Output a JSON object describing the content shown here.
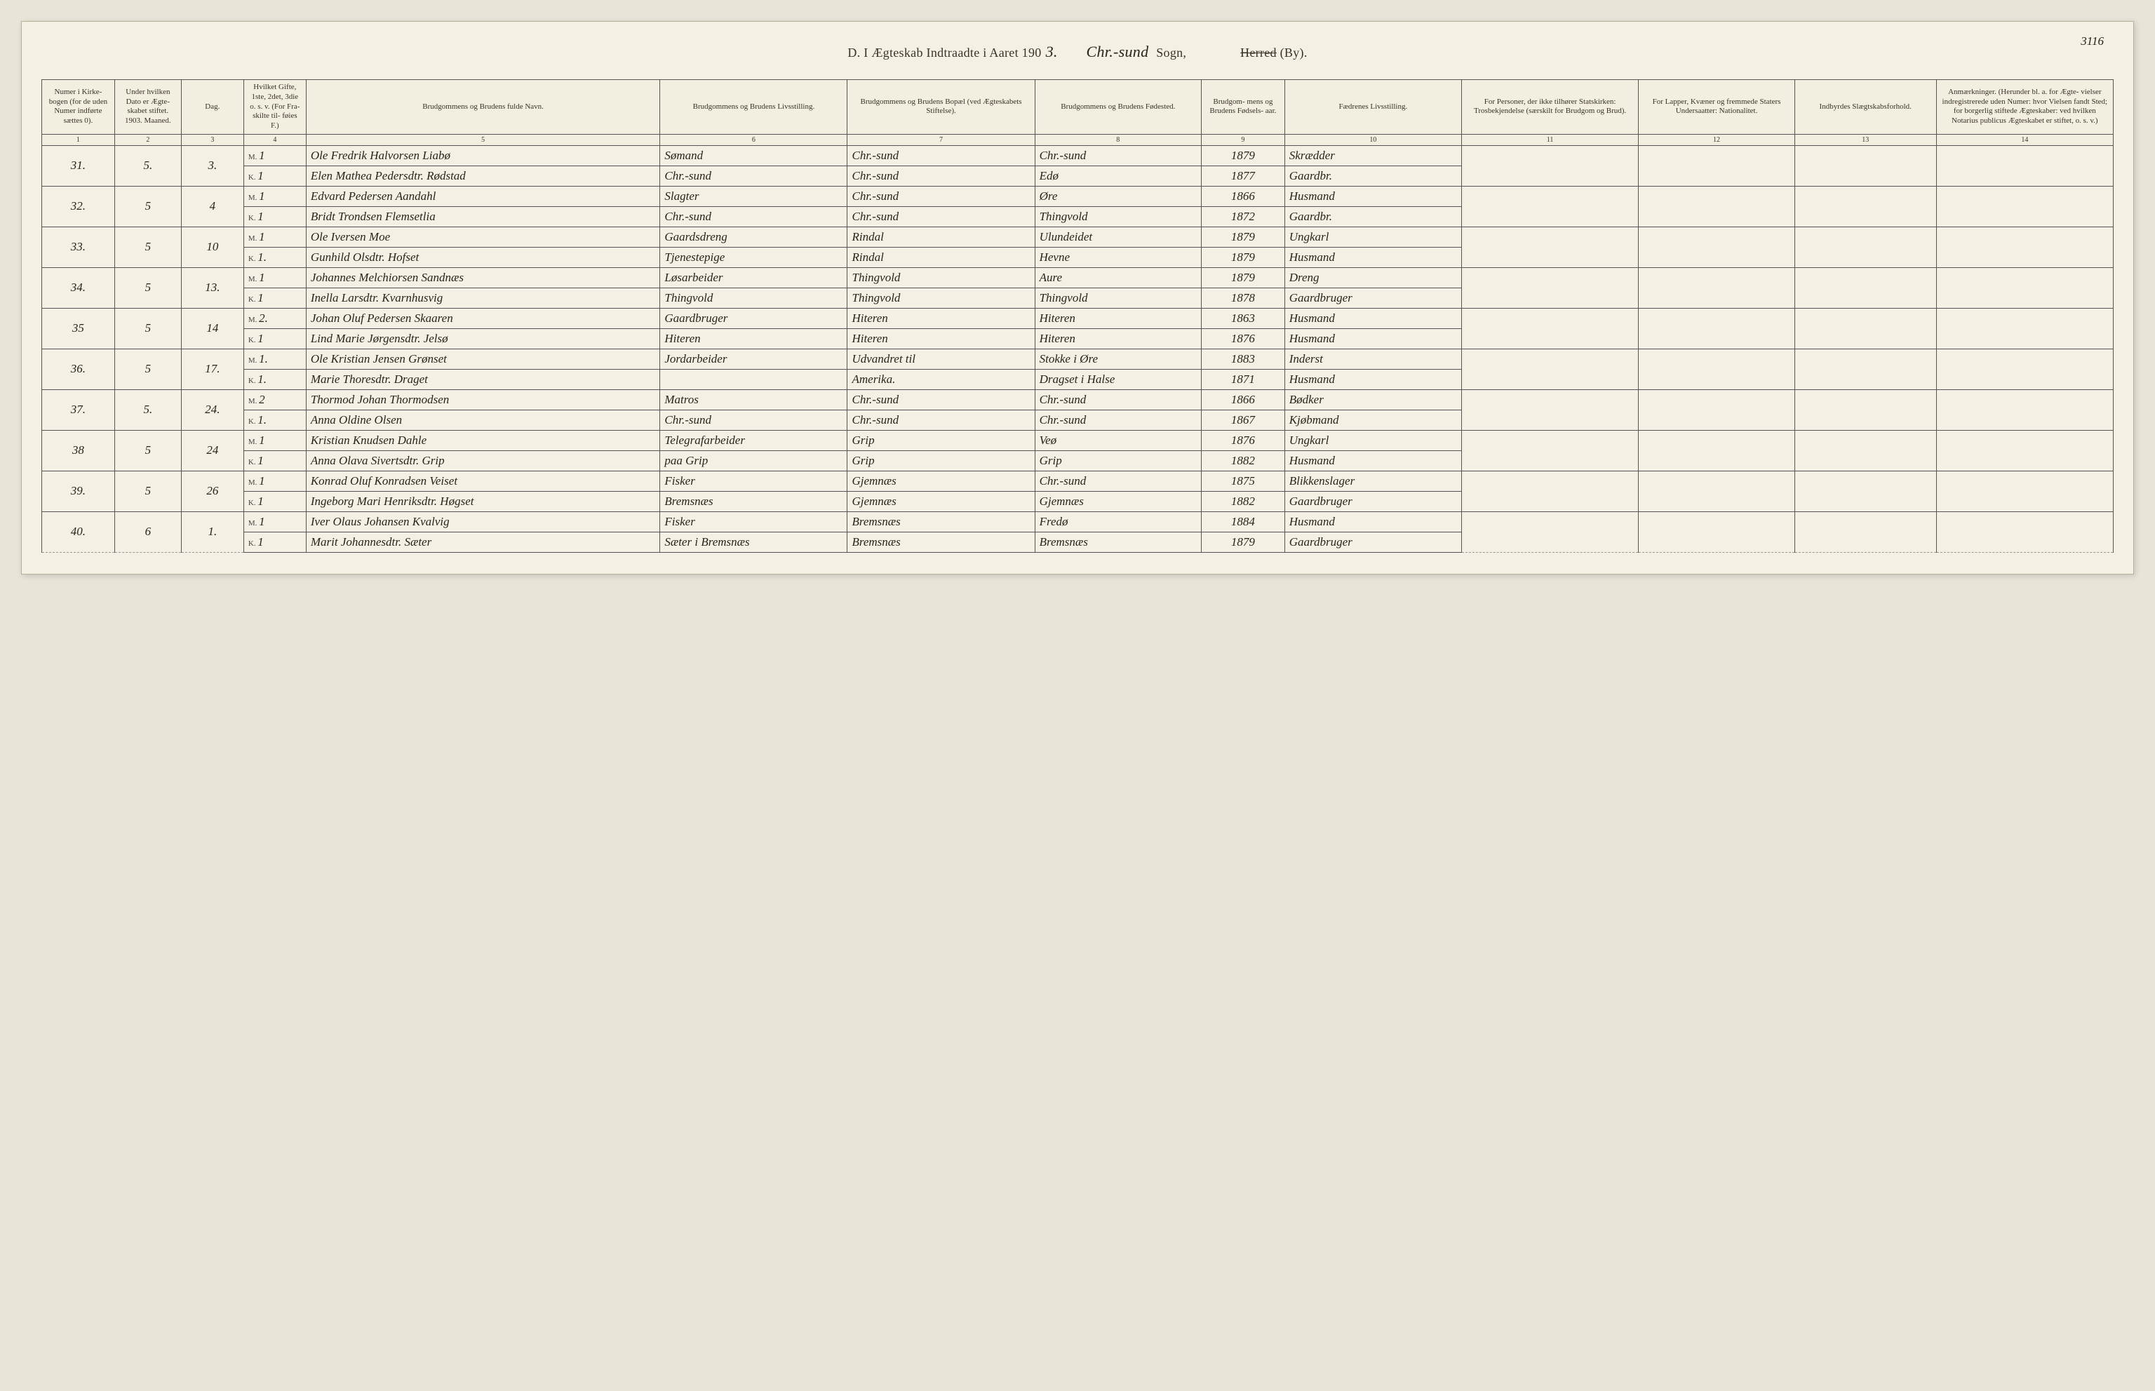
{
  "page_number": "3116",
  "header": {
    "prefix_letter": "D.",
    "printed_title": "I Ægteskab Indtraadte i Aaret 190",
    "year_suffix": "3.",
    "sogn_hand": "Chr.-sund",
    "sogn_label": "Sogn,",
    "herred_struck": "Herred",
    "by_label": "(By)."
  },
  "columns": [
    {
      "n": "1",
      "label": "Numer i Kirke- bogen (for de uden Numer indførte sættes 0)."
    },
    {
      "n": "2",
      "label": "Under hvilken Dato er Ægte- skabet stiftet. 1903. Maaned."
    },
    {
      "n": "3",
      "label": "Dag."
    },
    {
      "n": "4",
      "label": "Hvilket Gifte, 1ste, 2det, 3die o. s. v. (For Fra- skilte til- føies F.)"
    },
    {
      "n": "5",
      "label": "Brudgommens og Brudens fulde Navn."
    },
    {
      "n": "6",
      "label": "Brudgommens og Brudens Livsstilling."
    },
    {
      "n": "7",
      "label": "Brudgommens og Brudens Bopæl (ved Ægteskabets Stiftelse)."
    },
    {
      "n": "8",
      "label": "Brudgommens og Brudens Fødested."
    },
    {
      "n": "9",
      "label": "Brudgom- mens og Brudens Fødsels- aar."
    },
    {
      "n": "10",
      "label": "Fædrenes Livsstilling."
    },
    {
      "n": "11",
      "label": "For Personer, der ikke tilhører Statskirken: Trosbekjendelse (særskilt for Brudgom og Brud)."
    },
    {
      "n": "12",
      "label": "For Lapper, Kvæner og fremmede Staters Undersaatter: Nationalitet."
    },
    {
      "n": "13",
      "label": "Indbyrdes Slægtskabsforhold."
    },
    {
      "n": "14",
      "label": "Anmærkninger. (Herunder bl. a. for Ægte- vielser indregistrerede uden Numer: hvor Vielsen fandt Sted; for borgerlig stiftede Ægteskaber: ved hvilken Notarius publicus Ægteskabet er stiftet, o. s. v.)"
    }
  ],
  "mk_labels": {
    "groom": "M.",
    "bride": "K."
  },
  "rows": [
    {
      "num": "31.",
      "month": "5.",
      "day": "3.",
      "groom": {
        "gifte": "1",
        "name": "Ole Fredrik Halvorsen Liabø",
        "stilling": "Sømand",
        "bopal": "Chr.-sund",
        "fodested": "Chr.-sund",
        "aar": "1879",
        "faedre": "Skrædder"
      },
      "bride": {
        "gifte": "1",
        "name": "Elen Mathea Pedersdtr. Rødstad",
        "stilling": "Chr.-sund",
        "bopal": "Chr.-sund",
        "fodested": "Edø",
        "aar": "1877",
        "faedre": "Gaardbr."
      }
    },
    {
      "num": "32.",
      "month": "5",
      "day": "4",
      "groom": {
        "gifte": "1",
        "name": "Edvard Pedersen Aandahl",
        "stilling": "Slagter",
        "bopal": "Chr.-sund",
        "fodested": "Øre",
        "aar": "1866",
        "faedre": "Husmand"
      },
      "bride": {
        "gifte": "1",
        "name": "Bridt Trondsen Flemsetlia",
        "stilling": "Chr.-sund",
        "bopal": "Chr.-sund",
        "fodested": "Thingvold",
        "aar": "1872",
        "faedre": "Gaardbr."
      }
    },
    {
      "num": "33.",
      "month": "5",
      "day": "10",
      "groom": {
        "gifte": "1",
        "name": "Ole Iversen Moe",
        "stilling": "Gaardsdreng",
        "bopal": "Rindal",
        "fodested": "Ulundeidet",
        "aar": "1879",
        "faedre": "Ungkarl"
      },
      "bride": {
        "gifte": "1.",
        "name": "Gunhild Olsdtr. Hofset",
        "stilling": "Tjenestepige",
        "bopal": "Rindal",
        "fodested": "Hevne",
        "aar": "1879",
        "faedre": "Husmand"
      }
    },
    {
      "num": "34.",
      "month": "5",
      "day": "13.",
      "groom": {
        "gifte": "1",
        "name": "Johannes Melchiorsen Sandnæs",
        "stilling": "Løsarbeider",
        "bopal": "Thingvold",
        "fodested": "Aure",
        "aar": "1879",
        "faedre": "Dreng"
      },
      "bride": {
        "gifte": "1",
        "name": "Inella Larsdtr. Kvarnhusvig",
        "stilling": "Thingvold",
        "bopal": "Thingvold",
        "fodested": "Thingvold",
        "aar": "1878",
        "faedre": "Gaardbruger"
      }
    },
    {
      "num": "35",
      "month": "5",
      "day": "14",
      "groom": {
        "gifte": "2.",
        "name": "Johan Oluf Pedersen Skaaren",
        "stilling": "Gaardbruger",
        "bopal": "Hiteren",
        "fodested": "Hiteren",
        "aar": "1863",
        "faedre": "Husmand"
      },
      "bride": {
        "gifte": "1",
        "name": "Lind Marie Jørgensdtr. Jelsø",
        "stilling": "Hiteren",
        "bopal": "Hiteren",
        "fodested": "Hiteren",
        "aar": "1876",
        "faedre": "Husmand"
      }
    },
    {
      "num": "36.",
      "month": "5",
      "day": "17.",
      "groom": {
        "gifte": "1.",
        "name": "Ole Kristian Jensen Grønset",
        "stilling": "Jordarbeider",
        "bopal": "Udvandret til",
        "fodested": "Stokke i Øre",
        "aar": "1883",
        "faedre": "Inderst"
      },
      "bride": {
        "gifte": "1.",
        "name": "Marie Thoresdtr. Draget",
        "stilling": "",
        "bopal": "Amerika.",
        "fodested": "Dragset i Halse",
        "aar": "1871",
        "faedre": "Husmand"
      }
    },
    {
      "num": "37.",
      "month": "5.",
      "day": "24.",
      "groom": {
        "gifte": "2",
        "name": "Thormod Johan Thormodsen",
        "stilling": "Matros",
        "bopal": "Chr.-sund",
        "fodested": "Chr.-sund",
        "aar": "1866",
        "faedre": "Bødker"
      },
      "bride": {
        "gifte": "1.",
        "name": "Anna Oldine Olsen",
        "stilling": "Chr.-sund",
        "bopal": "Chr.-sund",
        "fodested": "Chr.-sund",
        "aar": "1867",
        "faedre": "Kjøbmand"
      }
    },
    {
      "num": "38",
      "month": "5",
      "day": "24",
      "groom": {
        "gifte": "1",
        "name": "Kristian Knudsen Dahle",
        "stilling": "Telegrafarbeider",
        "bopal": "Grip",
        "fodested": "Veø",
        "aar": "1876",
        "faedre": "Ungkarl"
      },
      "bride": {
        "gifte": "1",
        "name": "Anna Olava Sivertsdtr. Grip",
        "stilling": "paa Grip",
        "bopal": "Grip",
        "fodested": "Grip",
        "aar": "1882",
        "faedre": "Husmand"
      }
    },
    {
      "num": "39.",
      "month": "5",
      "day": "26",
      "groom": {
        "gifte": "1",
        "name": "Konrad Oluf Konradsen Veiset",
        "stilling": "Fisker",
        "bopal": "Gjemnæs",
        "fodested": "Chr.-sund",
        "aar": "1875",
        "faedre": "Blikkenslager"
      },
      "bride": {
        "gifte": "1",
        "name": "Ingeborg Mari Henriksdtr. Høgset",
        "stilling": "Bremsnæs",
        "bopal": "Gjemnæs",
        "fodested": "Gjemnæs",
        "aar": "1882",
        "faedre": "Gaardbruger"
      }
    },
    {
      "num": "40.",
      "month": "6",
      "day": "1.",
      "groom": {
        "gifte": "1",
        "name": "Iver Olaus Johansen Kvalvig",
        "stilling": "Fisker",
        "bopal": "Bremsnæs",
        "fodested": "Fredø",
        "aar": "1884",
        "faedre": "Husmand"
      },
      "bride": {
        "gifte": "1",
        "name": "Marit Johannesdtr. Sæter",
        "stilling": "Sæter i Bremsnæs",
        "bopal": "Bremsnæs",
        "fodested": "Bremsnæs",
        "aar": "1879",
        "faedre": "Gaardbruger"
      }
    }
  ]
}
